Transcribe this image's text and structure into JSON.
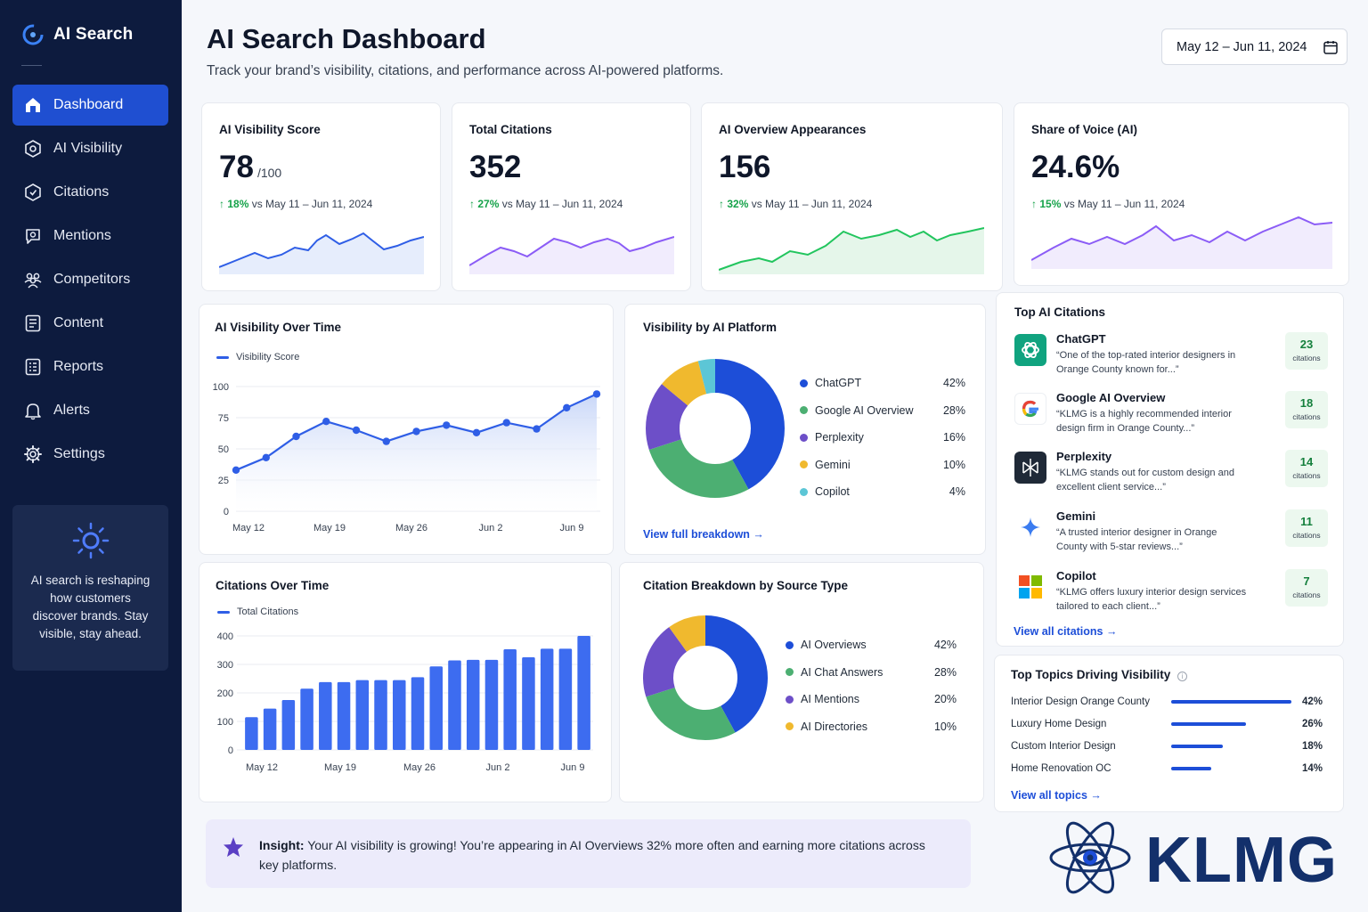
{
  "app": {
    "title": "AI Search"
  },
  "sidebar": {
    "items": [
      {
        "label": "Dashboard",
        "icon": "home-icon",
        "active": true
      },
      {
        "label": "AI Visibility",
        "icon": "visibility-icon"
      },
      {
        "label": "Citations",
        "icon": "citations-icon"
      },
      {
        "label": "Mentions",
        "icon": "mentions-icon"
      },
      {
        "label": "Competitors",
        "icon": "competitors-icon"
      },
      {
        "label": "Content",
        "icon": "content-icon"
      },
      {
        "label": "Reports",
        "icon": "reports-icon"
      },
      {
        "label": "Alerts",
        "icon": "bell-icon"
      },
      {
        "label": "Settings",
        "icon": "gear-icon"
      }
    ],
    "promo_text": "AI search is reshaping how customers discover brands. Stay visible, stay ahead."
  },
  "header": {
    "title": "AI Search Dashboard",
    "subtitle": "Track your brand’s visibility, citations, and performance across AI-powered platforms.",
    "date_range": "May 12 – Jun 11, 2024"
  },
  "kpis": [
    {
      "title": "AI Visibility Score",
      "value": "78",
      "unit": "/100",
      "delta": "18%",
      "compare": "vs May 11 – Jun 11, 2024",
      "color": "#2f5ee6"
    },
    {
      "title": "Total Citations",
      "value": "352",
      "unit": "",
      "delta": "27%",
      "compare": "vs May 11 – Jun 11, 2024",
      "color": "#8b5cf6"
    },
    {
      "title": "AI Overview Appearances",
      "value": "156",
      "unit": "",
      "delta": "32%",
      "compare": "vs May 11 – Jun 11, 2024",
      "color": "#22c55e"
    },
    {
      "title": "Share of Voice (AI)",
      "value": "24.6%",
      "unit": "",
      "delta": "15%",
      "compare": "vs May 11 – Jun 11, 2024",
      "color": "#8b5cf6"
    }
  ],
  "visibility_chart": {
    "title": "AI Visibility Over Time",
    "legend": "Visibility Score",
    "y_ticks": [
      "100",
      "75",
      "50",
      "25",
      "0"
    ],
    "x_ticks": [
      "May 12",
      "May 19",
      "May 26",
      "Jun 2",
      "Jun 9"
    ]
  },
  "citations_chart": {
    "title": "Citations Over Time",
    "legend": "Total Citations",
    "y_ticks": [
      "400",
      "300",
      "200",
      "100",
      "0"
    ],
    "x_ticks": [
      "May 12",
      "May 19",
      "May 26",
      "Jun 2",
      "Jun 9"
    ]
  },
  "platform_chart": {
    "title": "Visibility by AI Platform",
    "link": "View full breakdown →",
    "items": [
      {
        "label": "ChatGPT",
        "value": "42%",
        "pct": 42,
        "color": "#1d4ed8"
      },
      {
        "label": "Google AI Overview",
        "value": "28%",
        "pct": 28,
        "color": "#4caf72"
      },
      {
        "label": "Perplexity",
        "value": "16%",
        "pct": 16,
        "color": "#6d4fc8"
      },
      {
        "label": "Gemini",
        "value": "10%",
        "pct": 10,
        "color": "#f0b92e"
      },
      {
        "label": "Copilot",
        "value": "4%",
        "pct": 4,
        "color": "#5cc6d6"
      }
    ]
  },
  "source_chart": {
    "title": "Citation Breakdown by Source Type",
    "items": [
      {
        "label": "AI Overviews",
        "value": "42%",
        "pct": 42,
        "color": "#1d4ed8"
      },
      {
        "label": "AI Chat Answers",
        "value": "28%",
        "pct": 28,
        "color": "#4caf72"
      },
      {
        "label": "AI Mentions",
        "value": "20%",
        "pct": 20,
        "color": "#6d4fc8"
      },
      {
        "label": "AI Directories",
        "value": "10%",
        "pct": 10,
        "color": "#f0b92e"
      }
    ]
  },
  "top_citations": {
    "title": "Top AI Citations",
    "link": "View all citations →",
    "badge_label": "citations",
    "items": [
      {
        "name": "ChatGPT",
        "quote": "“One of the top-rated interior designers in Orange County known for...”",
        "count": "23",
        "icon": "chatgpt-logo-icon"
      },
      {
        "name": "Google AI Overview",
        "quote": "“KLMG is a highly recommended interior design firm in Orange County...”",
        "count": "18",
        "icon": "google-logo-icon"
      },
      {
        "name": "Perplexity",
        "quote": "“KLMG stands out for custom design and excellent client service...”",
        "count": "14",
        "icon": "perplexity-logo-icon"
      },
      {
        "name": "Gemini",
        "quote": "“A trusted interior designer in Orange County with 5-star reviews...”",
        "count": "11",
        "icon": "gemini-logo-icon"
      },
      {
        "name": "Copilot",
        "quote": "“KLMG offers luxury interior design services tailored to each client...”",
        "count": "7",
        "icon": "copilot-logo-icon"
      }
    ]
  },
  "top_topics": {
    "title": "Top Topics Driving Visibility",
    "link": "View all topics →",
    "items": [
      {
        "label": "Interior Design Orange County",
        "value": "42%",
        "pct": 42
      },
      {
        "label": "Luxury Home Design",
        "value": "26%",
        "pct": 26
      },
      {
        "label": "Custom Interior Design",
        "value": "18%",
        "pct": 18
      },
      {
        "label": "Home Renovation OC",
        "value": "14%",
        "pct": 14
      }
    ]
  },
  "insight": {
    "label": "Insight:",
    "text": "Your AI visibility is growing! You’re appearing in AI Overviews 32% more often and earning more citations across key platforms."
  },
  "brand_logo": {
    "text": "KLMG"
  },
  "chart_data": [
    {
      "type": "line",
      "title": "AI Visibility Over Time",
      "series": [
        {
          "name": "Visibility Score",
          "values": [
            33,
            43,
            60,
            72,
            65,
            56,
            64,
            69,
            63,
            71,
            66,
            83,
            94
          ]
        }
      ],
      "x": [
        "May 12",
        "May 14",
        "May 17",
        "May 19",
        "May 21",
        "May 23",
        "May 26",
        "May 28",
        "Jun 1",
        "Jun 4",
        "Jun 6",
        "Jun 8",
        "Jun 11"
      ],
      "ylim": [
        0,
        100
      ],
      "x_ticks": [
        "May 12",
        "May 19",
        "May 26",
        "Jun 2",
        "Jun 9"
      ],
      "grid": true
    },
    {
      "type": "bar",
      "title": "Citations Over Time",
      "series": [
        {
          "name": "Total Citations",
          "values": [
            115,
            145,
            175,
            215,
            238,
            238,
            245,
            245,
            245,
            255,
            293,
            314,
            316,
            316,
            353,
            325,
            355,
            355,
            400
          ]
        }
      ],
      "ylim": [
        0,
        400
      ],
      "x_ticks": [
        "May 12",
        "May 19",
        "May 26",
        "Jun 2",
        "Jun 9"
      ]
    },
    {
      "type": "pie",
      "title": "Visibility by AI Platform",
      "categories": [
        "ChatGPT",
        "Google AI Overview",
        "Perplexity",
        "Gemini",
        "Copilot"
      ],
      "values": [
        42,
        28,
        16,
        10,
        4
      ]
    },
    {
      "type": "pie",
      "title": "Citation Breakdown by Source Type",
      "categories": [
        "AI Overviews",
        "AI Chat Answers",
        "AI Mentions",
        "AI Directories"
      ],
      "values": [
        42,
        28,
        20,
        10
      ]
    }
  ]
}
